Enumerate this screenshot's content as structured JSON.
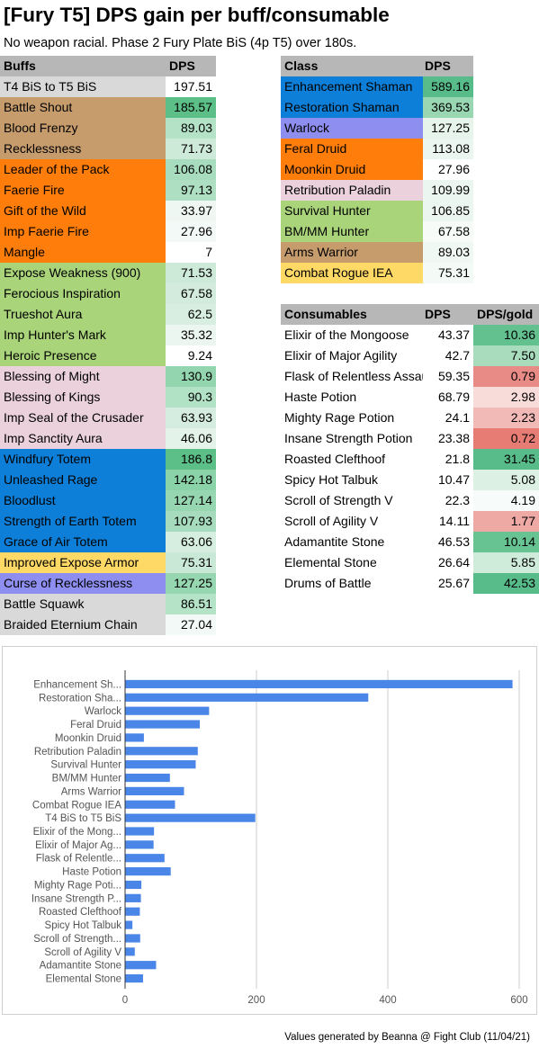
{
  "title": "[Fury T5] DPS gain per buff/consumable",
  "subtitle": "No weapon racial. Phase 2 Fury Plate BiS (4p T5) over 180s.",
  "footer": "Values generated by Beanna @ Fight Club (11/04/21)",
  "buffs_table": {
    "headers": [
      "Buffs",
      "DPS"
    ],
    "rows": [
      {
        "name": "T4 BiS to T5 BiS",
        "dps": "197.51",
        "name_color": "#d9d9d9",
        "dps_color": "#ffffff"
      },
      {
        "name": "Battle Shout",
        "dps": "185.57",
        "name_color": "#c69c6d",
        "dps_color": "#5cbf87"
      },
      {
        "name": "Blood Frenzy",
        "dps": "89.03",
        "name_color": "#c69c6d",
        "dps_color": "#b3e2c6"
      },
      {
        "name": "Recklessness",
        "dps": "71.73",
        "name_color": "#c69c6d",
        "dps_color": "#cde9d8"
      },
      {
        "name": "Leader of the Pack",
        "dps": "106.08",
        "name_color": "#ff7d0a",
        "dps_color": "#a7ddbe"
      },
      {
        "name": "Faerie Fire",
        "dps": "97.13",
        "name_color": "#ff7d0a",
        "dps_color": "#aedfc2"
      },
      {
        "name": "Gift of the Wild",
        "dps": "33.97",
        "name_color": "#ff7d0a",
        "dps_color": "#eef7f2"
      },
      {
        "name": "Imp Faerie Fire",
        "dps": "27.96",
        "name_color": "#ff7d0a",
        "dps_color": "#f3f9f6"
      },
      {
        "name": "Mangle",
        "dps": "7",
        "name_color": "#ff7d0a",
        "dps_color": "#ffffff"
      },
      {
        "name": "Expose Weakness (900)",
        "dps": "71.53",
        "name_color": "#a9d47a",
        "dps_color": "#cde9d8"
      },
      {
        "name": "Ferocious Inspiration",
        "dps": "67.58",
        "name_color": "#a9d47a",
        "dps_color": "#d2ebdc"
      },
      {
        "name": "Trueshot Aura",
        "dps": "62.5",
        "name_color": "#a9d47a",
        "dps_color": "#d7eee0"
      },
      {
        "name": "Imp Hunter's Mark",
        "dps": "35.32",
        "name_color": "#a9d47a",
        "dps_color": "#ecf6f0"
      },
      {
        "name": "Heroic Presence",
        "dps": "9.24",
        "name_color": "#a9d47a",
        "dps_color": "#ffffff"
      },
      {
        "name": "Blessing of Might",
        "dps": "130.9",
        "name_color": "#ead1dc",
        "dps_color": "#93d5ae"
      },
      {
        "name": "Blessing of Kings",
        "dps": "90.3",
        "name_color": "#ead1dc",
        "dps_color": "#b2e2c6"
      },
      {
        "name": "Imp Seal of the Crusader",
        "dps": "63.93",
        "name_color": "#ead1dc",
        "dps_color": "#d5ede0"
      },
      {
        "name": "Imp Sanctity Aura",
        "dps": "46.06",
        "name_color": "#ead1dc",
        "dps_color": "#e3f3ea"
      },
      {
        "name": "Windfury Totem",
        "dps": "186.8",
        "name_color": "#0d7fd8",
        "dps_color": "#5cbf87"
      },
      {
        "name": "Unleashed Rage",
        "dps": "142.18",
        "name_color": "#0d7fd8",
        "dps_color": "#8ad2a8"
      },
      {
        "name": "Bloodlust",
        "dps": "127.14",
        "name_color": "#0d7fd8",
        "dps_color": "#96d6b0"
      },
      {
        "name": "Strength of Earth Totem",
        "dps": "107.93",
        "name_color": "#0d7fd8",
        "dps_color": "#a6dcbd"
      },
      {
        "name": "Grace of Air Totem",
        "dps": "63.06",
        "name_color": "#0d7fd8",
        "dps_color": "#d6eedf"
      },
      {
        "name": "Improved Expose Armor",
        "dps": "75.31",
        "name_color": "#ffd966",
        "dps_color": "#cae8d6"
      },
      {
        "name": "Curse of Recklessness",
        "dps": "127.25",
        "name_color": "#8e8ef0",
        "dps_color": "#96d6b0"
      },
      {
        "name": "Battle Squawk",
        "dps": "86.51",
        "name_color": "#d9d9d9",
        "dps_color": "#b5e3c8"
      },
      {
        "name": "Braided Eternium Chain",
        "dps": "27.04",
        "name_color": "#d9d9d9",
        "dps_color": "#f3f9f6"
      }
    ]
  },
  "class_table": {
    "headers": [
      "Class",
      "DPS"
    ],
    "rows": [
      {
        "name": "Enhancement Shaman",
        "dps": "589.16",
        "name_color": "#0d7fd8",
        "dps_color": "#57bb8a"
      },
      {
        "name": "Restoration Shaman",
        "dps": "369.53",
        "name_color": "#0d7fd8",
        "dps_color": "#99d7b3"
      },
      {
        "name": "Warlock",
        "dps": "127.25",
        "name_color": "#8e8ef0",
        "dps_color": "#e6f4ec"
      },
      {
        "name": "Feral Druid",
        "dps": "113.08",
        "name_color": "#ff7d0a",
        "dps_color": "#eaf6ef"
      },
      {
        "name": "Moonkin Druid",
        "dps": "27.96",
        "name_color": "#ff7d0a",
        "dps_color": "#ffffff"
      },
      {
        "name": "Retribution Paladin",
        "dps": "109.99",
        "name_color": "#ead1dc",
        "dps_color": "#ebf6f0"
      },
      {
        "name": "Survival Hunter",
        "dps": "106.85",
        "name_color": "#a9d47a",
        "dps_color": "#ecf6f0"
      },
      {
        "name": "BM/MM Hunter",
        "dps": "67.58",
        "name_color": "#a9d47a",
        "dps_color": "#f6fbf8"
      },
      {
        "name": "Arms Warrior",
        "dps": "89.03",
        "name_color": "#c69c6d",
        "dps_color": "#f0f8f3"
      },
      {
        "name": "Combat Rogue IEA",
        "dps": "75.31",
        "name_color": "#ffd966",
        "dps_color": "#f4faf6"
      }
    ]
  },
  "consumables_table": {
    "headers": [
      "Consumables",
      "DPS",
      "DPS/gold"
    ],
    "rows": [
      {
        "name": "Elixir of the Mongoose",
        "dps": "43.37",
        "per_gold": "10.36",
        "per_gold_color": "#63c18f"
      },
      {
        "name": "Elixir of Major Agility",
        "dps": "42.7",
        "per_gold": "7.50",
        "per_gold_color": "#a8dcbd"
      },
      {
        "name": "Flask of Relentless Assault",
        "dps": "59.35",
        "per_gold": "0.79",
        "per_gold_color": "#e88b87"
      },
      {
        "name": "Haste Potion",
        "dps": "68.79",
        "per_gold": "2.98",
        "per_gold_color": "#f8dcda"
      },
      {
        "name": "Mighty Rage Potion",
        "dps": "24.1",
        "per_gold": "2.23",
        "per_gold_color": "#f1bab7"
      },
      {
        "name": "Insane Strength Potion",
        "dps": "23.38",
        "per_gold": "0.72",
        "per_gold_color": "#e67c73"
      },
      {
        "name": "Roasted Clefthoof",
        "dps": "21.8",
        "per_gold": "31.45",
        "per_gold_color": "#57bb8a"
      },
      {
        "name": "Spicy Hot Talbuk",
        "dps": "10.47",
        "per_gold": "5.08",
        "per_gold_color": "#dcf0e4"
      },
      {
        "name": "Scroll of Strength V",
        "dps": "22.3",
        "per_gold": "4.19",
        "per_gold_color": "#f7fbf9"
      },
      {
        "name": "Scroll of Agility V",
        "dps": "14.11",
        "per_gold": "1.77",
        "per_gold_color": "#eea9a5"
      },
      {
        "name": "Adamantite Stone",
        "dps": "46.53",
        "per_gold": "10.14",
        "per_gold_color": "#67c392"
      },
      {
        "name": "Elemental Stone",
        "dps": "26.64",
        "per_gold": "5.85",
        "per_gold_color": "#cfebda"
      },
      {
        "name": "Drums of Battle",
        "dps": "25.67",
        "per_gold": "42.53",
        "per_gold_color": "#57bb8a"
      }
    ]
  },
  "chart_data": {
    "type": "bar",
    "orientation": "horizontal",
    "categories": [
      "Enhancement Sh...",
      "Restoration Sha...",
      "Warlock",
      "Feral Druid",
      "Moonkin Druid",
      "Retribution Paladin",
      "Survival Hunter",
      "BM/MM Hunter",
      "Arms Warrior",
      "Combat Rogue IEA",
      "T4 BiS to T5 BiS",
      "Elixir of the Mong...",
      "Elixir of Major Ag...",
      "Flask of Relentle...",
      "Haste Potion",
      "Mighty Rage Poti...",
      "Insane Strength P...",
      "Roasted Clefthoof",
      "Spicy Hot Talbuk",
      "Scroll of Strength...",
      "Scroll of Agility V",
      "Adamantite Stone",
      "Elemental Stone"
    ],
    "values": [
      589.16,
      369.53,
      127.25,
      113.08,
      27.96,
      109.99,
      106.85,
      67.58,
      89.03,
      75.31,
      197.51,
      43.37,
      42.7,
      59.35,
      68.79,
      24.1,
      23.38,
      21.8,
      10.47,
      22.3,
      14.11,
      46.53,
      26.64
    ],
    "xticks": [
      "0",
      "200",
      "400",
      "600"
    ],
    "xlim": [
      0,
      600
    ],
    "title": "",
    "xlabel": "",
    "ylabel": "",
    "grid": "vertical",
    "bar_color": "#4a86e8"
  }
}
